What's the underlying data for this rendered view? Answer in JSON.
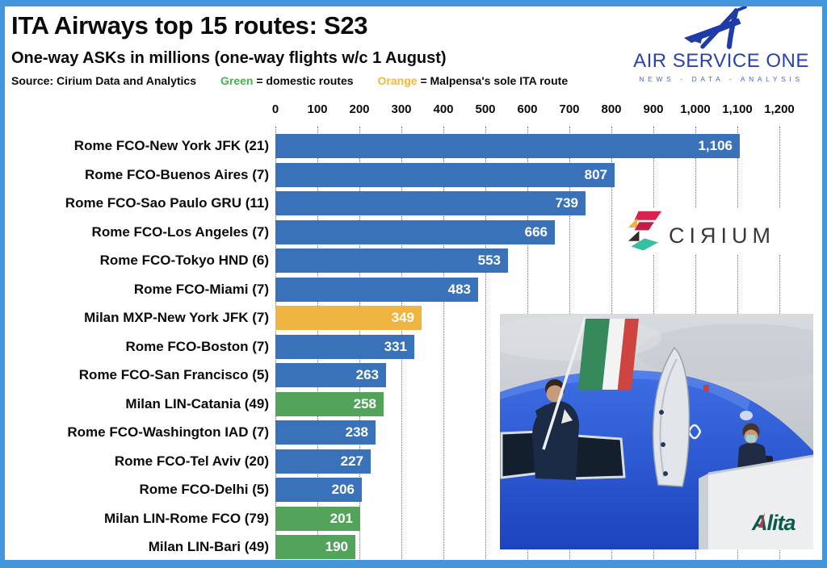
{
  "header": {
    "title": "ITA Airways top 15 routes: S23",
    "subtitle": "One-way ASKs in millions (one-way flights w/c 1 August)",
    "source": "Source: Cirium Data and Analytics",
    "legend_green": {
      "word": "Green",
      "rest": " = domestic routes",
      "color": "#4CAF50"
    },
    "legend_orange": {
      "word": "Orange",
      "rest": " = Malpensa's sole ITA route",
      "color": "#F5B53E"
    }
  },
  "logo_aso": {
    "name": "AIR SERVICE ONE",
    "tagline": "NEWS - DATA - ANALYSIS",
    "color": "#2843AC"
  },
  "logo_cirium": {
    "text": "CIЯIUM"
  },
  "photo": {
    "alitalia_text": "Alita"
  },
  "chart_data": {
    "type": "bar",
    "orientation": "horizontal",
    "title": "ITA Airways top 15 routes: S23",
    "subtitle": "One-way ASKs in millions (one-way flights w/c 1 August)",
    "source": "Source: Cirium Data and Analytics",
    "xlabel": "One-way ASKs (millions)",
    "xlim": [
      0,
      1200
    ],
    "xtick_step": 100,
    "grid": "dotted-vertical",
    "legend_note": "Green = domestic routes; Orange = Malpensa's sole ITA route",
    "categories": [
      "Rome FCO-New York JFK (21)",
      "Rome FCO-Buenos Aires (7)",
      "Rome FCO-Sao Paulo GRU (11)",
      "Rome FCO-Los Angeles (7)",
      "Rome FCO-Tokyo HND (6)",
      "Rome FCO-Miami (7)",
      "Milan MXP-New York JFK (7)",
      "Rome FCO-Boston (7)",
      "Rome FCO-San Francisco (5)",
      "Milan LIN-Catania (49)",
      "Rome FCO-Washington IAD (7)",
      "Rome FCO-Tel Aviv (20)",
      "Rome FCO-Delhi (5)",
      "Milan LIN-Rome FCO (79)",
      "Milan LIN-Bari (49)"
    ],
    "values": [
      1106,
      807,
      739,
      666,
      553,
      483,
      349,
      331,
      263,
      258,
      238,
      227,
      206,
      201,
      190
    ],
    "bar_types": [
      "international",
      "international",
      "international",
      "international",
      "international",
      "international",
      "malpensa",
      "international",
      "international",
      "domestic",
      "international",
      "international",
      "international",
      "domestic",
      "domestic"
    ],
    "colors": {
      "international": "#3A72B9",
      "domestic": "#53A35A",
      "malpensa": "#F0B440"
    }
  }
}
